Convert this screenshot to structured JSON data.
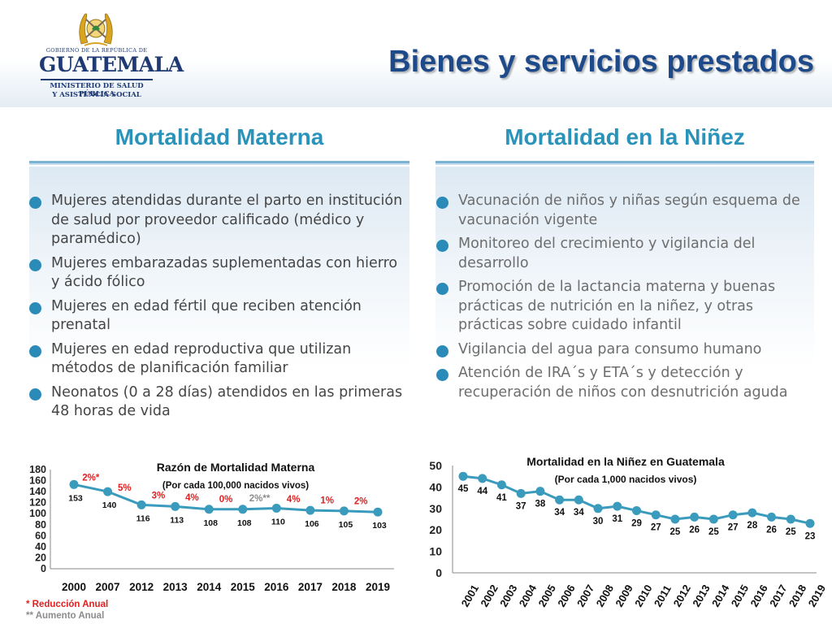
{
  "colors": {
    "accent": "#2a93ba",
    "title": "#1f4a8a",
    "bullet": "#2a8ab8",
    "series": "#3a9bbd",
    "red": "#e02020",
    "gray": "#8c8c8c",
    "panel": "#dde9f3"
  },
  "logo": {
    "government": "GOBIERNO DE LA REPÚBLICA DE",
    "name": "GUATEMALA",
    "ministry_line1": "MINISTERIO DE SALUD PÚBLICA",
    "ministry_line2": "Y ASISTENCIA SOCIAL",
    "emblem_icon": "coat-of-arms-icon"
  },
  "page": {
    "title": "Bienes y servicios prestados"
  },
  "left": {
    "title": "Mortalidad Materna",
    "items": [
      "Mujeres atendidas durante el parto en institución de salud por proveedor calificado (médico y paramédico)",
      "Mujeres embarazadas suplementadas con hierro y ácido fólico",
      "Mujeres en edad fértil que reciben atención prenatal",
      "Mujeres en edad reproductiva que utilizan métodos de planificación familiar",
      "Neonatos (0 a 28 días) atendidos en las primeras 48 horas de vida"
    ]
  },
  "right": {
    "title": "Mortalidad en la Niñez",
    "items": [
      "Vacunación de niños y niñas según esquema de vacunación vigente",
      "Monitoreo del crecimiento y vigilancia del desarrollo",
      "Promoción de la lactancia materna y buenas prácticas de nutrición en la niñez, y otras prácticas sobre cuidado infantil",
      "Vigilancia del agua para consumo humano",
      "Atención de IRA´s y ETA´s y detección y recuperación de niños con desnutrición aguda"
    ]
  },
  "chart_data": [
    {
      "type": "line",
      "title": "Razón de Mortalidad Materna",
      "subtitle": "(Por cada 100,000 nacidos vivos)",
      "categories": [
        "2000",
        "2007",
        "2012",
        "2013",
        "2014",
        "2015",
        "2016",
        "2017",
        "2018",
        "2019"
      ],
      "values": [
        153,
        140,
        116,
        113,
        108,
        108,
        110,
        106,
        105,
        103
      ],
      "y_ticks": [
        0,
        20,
        40,
        60,
        80,
        100,
        120,
        140,
        160,
        180
      ],
      "ylim": [
        0,
        180
      ],
      "annotations": [
        "2%*",
        "5%",
        "3%",
        "4%",
        "0%",
        "2%**",
        "4%",
        "1%",
        "2%"
      ],
      "annotation_kinds": [
        "red",
        "red",
        "red",
        "red",
        "red",
        "gray",
        "red",
        "red",
        "red"
      ],
      "grid": false
    },
    {
      "type": "line",
      "title": "Mortalidad en la Niñez en Guatemala",
      "subtitle": "(Por cada 1,000 nacidos vivos)",
      "categories": [
        "2001",
        "2002",
        "2003",
        "2004",
        "2005",
        "2006",
        "2007",
        "2008",
        "2009",
        "2010",
        "2011",
        "2012",
        "2013",
        "2014",
        "2015",
        "2016",
        "2017",
        "2018",
        "2019"
      ],
      "values": [
        45,
        44,
        41,
        37,
        38,
        34,
        34,
        30,
        31,
        29,
        27,
        25,
        26,
        25,
        27,
        28,
        26,
        25,
        23
      ],
      "y_ticks": [
        0,
        10,
        20,
        30,
        40,
        50
      ],
      "ylim": [
        0,
        50
      ],
      "grid": false
    }
  ],
  "footnotes": {
    "annual_reduction": "* Reducción Anual",
    "annual_increase": "** Aumento Anual"
  }
}
